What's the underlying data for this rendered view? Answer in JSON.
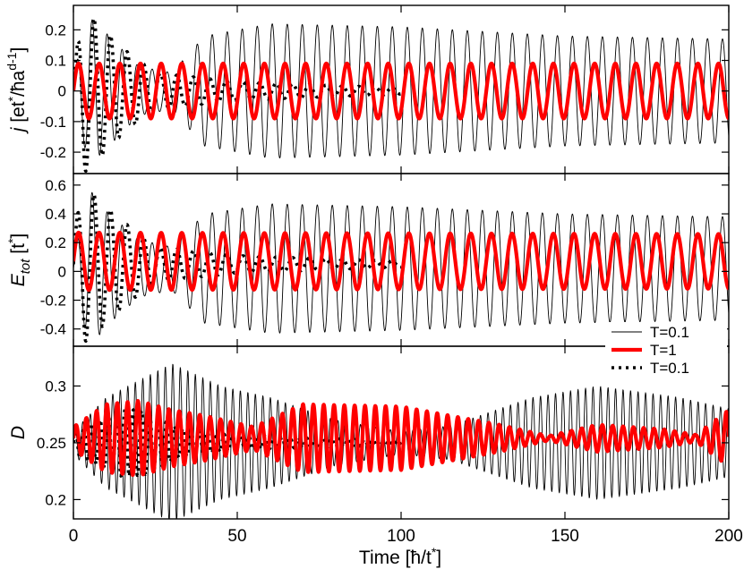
{
  "chart_data": {
    "type": "line",
    "xlabel": "Time [ħ/t*]",
    "xlim": [
      0,
      200
    ],
    "xticks": [
      0,
      50,
      100,
      150,
      200
    ],
    "legend": {
      "placement": "bottom-right of middle panel",
      "entries": [
        {
          "label": "T=0.1",
          "style": "thin-black"
        },
        {
          "label": "T=1",
          "style": "thick-red"
        },
        {
          "label": "T=0.1",
          "style": "dotted-black"
        }
      ]
    },
    "panels": [
      {
        "id": "current",
        "ylabel": "j [et*/ħa^(d-1)]",
        "ylim": [
          -0.27,
          0.28
        ],
        "yticks": [
          -0.2,
          -0.1,
          0,
          0.1,
          0.2
        ],
        "ytick_labels": [
          "-0.2",
          "-0.1",
          "0",
          "0.1",
          "0.2"
        ],
        "series": [
          {
            "style": "thin-black",
            "period": 4.58,
            "phase": 0,
            "amp_points": [
              [
                0,
                0.06
              ],
              [
                5,
                0.24
              ],
              [
                10,
                0.19
              ],
              [
                20,
                0.08
              ],
              [
                30,
                0.06
              ],
              [
                40,
                0.18
              ],
              [
                60,
                0.22
              ],
              [
                100,
                0.21
              ],
              [
                150,
                0.18
              ],
              [
                200,
                0.17
              ]
            ]
          },
          {
            "style": "thick-red",
            "period": 6.3,
            "phase": 0,
            "amp_points": [
              [
                0,
                0.09
              ],
              [
                200,
                0.09
              ]
            ]
          },
          {
            "style": "dotted-black",
            "period": 5.05,
            "phase": 0,
            "xmax": 100,
            "amp_points": [
              [
                0,
                0.07
              ],
              [
                3,
                0.27
              ],
              [
                8,
                0.22
              ],
              [
                15,
                0.14
              ],
              [
                25,
                0.06
              ],
              [
                50,
                0.03
              ],
              [
                100,
                0.01
              ]
            ]
          }
        ]
      },
      {
        "id": "energy",
        "ylabel": "E_tot [t*]",
        "ylim": [
          -0.52,
          0.68
        ],
        "yticks": [
          -0.4,
          -0.2,
          0,
          0.2,
          0.4,
          0.6
        ],
        "ytick_labels": [
          "-0.4",
          "-0.2",
          "0",
          "0.2",
          "0.4",
          "0.6"
        ],
        "series": [
          {
            "style": "thin-black",
            "period": 4.58,
            "phase": 0,
            "center": 0.02,
            "amp_points": [
              [
                0,
                0.1
              ],
              [
                5,
                0.55
              ],
              [
                10,
                0.4
              ],
              [
                20,
                0.2
              ],
              [
                30,
                0.15
              ],
              [
                40,
                0.38
              ],
              [
                60,
                0.45
              ],
              [
                100,
                0.43
              ],
              [
                150,
                0.38
              ],
              [
                200,
                0.36
              ]
            ]
          },
          {
            "style": "thick-red",
            "period": 6.3,
            "phase": 0,
            "center": 0.07,
            "amp_points": [
              [
                0,
                0.2
              ],
              [
                200,
                0.19
              ]
            ]
          },
          {
            "style": "dotted-black",
            "period": 5.05,
            "phase": 0,
            "center": 0.05,
            "xmax": 100,
            "amp_points": [
              [
                0,
                0.2
              ],
              [
                3,
                0.55
              ],
              [
                8,
                0.45
              ],
              [
                15,
                0.3
              ],
              [
                25,
                0.12
              ],
              [
                50,
                0.06
              ],
              [
                100,
                0.02
              ]
            ]
          }
        ]
      },
      {
        "id": "double-occupancy",
        "ylabel": "D",
        "ylim": [
          0.183,
          0.335
        ],
        "yticks": [
          0.2,
          0.25,
          0.3
        ],
        "ytick_labels": [
          "0.2",
          "0.25",
          "0.3"
        ],
        "series": [
          {
            "style": "thin-black",
            "period": 2.29,
            "phase": 0,
            "center": 0.25,
            "amp_points": [
              [
                0,
                0.01
              ],
              [
                10,
                0.04
              ],
              [
                20,
                0.055
              ],
              [
                30,
                0.07
              ],
              [
                45,
                0.05
              ],
              [
                60,
                0.04
              ],
              [
                80,
                0.02
              ],
              [
                100,
                0.01
              ],
              [
                115,
                0.015
              ],
              [
                140,
                0.04
              ],
              [
                160,
                0.05
              ],
              [
                185,
                0.04
              ],
              [
                200,
                0.03
              ]
            ]
          },
          {
            "style": "thick-red",
            "period": 3.15,
            "phase": 0,
            "center": 0.254,
            "amp_points": [
              [
                0,
                0.01
              ],
              [
                10,
                0.03
              ],
              [
                20,
                0.033
              ],
              [
                30,
                0.025
              ],
              [
                40,
                0.02
              ],
              [
                55,
                0.01
              ],
              [
                70,
                0.03
              ],
              [
                100,
                0.028
              ],
              [
                130,
                0.012
              ],
              [
                145,
                0.002
              ],
              [
                160,
                0.012
              ],
              [
                180,
                0.008
              ],
              [
                190,
                0.003
              ],
              [
                200,
                0.025
              ]
            ]
          },
          {
            "style": "dotted-black",
            "period": 2.52,
            "phase": 0,
            "center": 0.25,
            "xmax": 100,
            "amp_points": [
              [
                0,
                0.01
              ],
              [
                8,
                0.02
              ],
              [
                15,
                0.03
              ],
              [
                22,
                0.028
              ],
              [
                32,
                0.013
              ],
              [
                50,
                0.006
              ],
              [
                100,
                0.002
              ]
            ]
          }
        ]
      }
    ]
  }
}
